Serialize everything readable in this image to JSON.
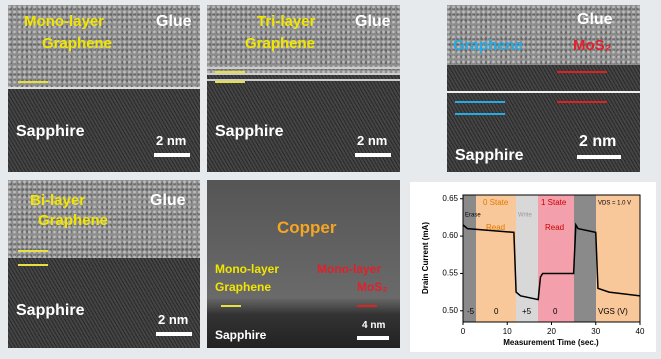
{
  "panels": [
    {
      "labels": [
        "Mono-layer",
        "Graphene",
        "Glue",
        "Sapphire",
        "2 nm"
      ]
    },
    {
      "labels": [
        "Tri-layer",
        "Graphene",
        "Glue",
        "Sapphire",
        "2 nm"
      ]
    },
    {
      "labels": [
        "Glue",
        "Graphene",
        "MoS₂",
        "Sapphire",
        "2 nm"
      ]
    },
    {
      "labels": [
        "Bi-layer",
        "Graphene",
        "Glue",
        "Sapphire",
        "2 nm"
      ]
    },
    {
      "labels": [
        "Copper",
        "Mono-layer",
        "Graphene",
        "Mono-layer",
        "MoS₂",
        "Sapphire",
        "4 nm"
      ]
    }
  ],
  "chart_data": {
    "type": "line",
    "x_label": "Measurement Time (sec.)",
    "y_label": "Drain Current (mA)",
    "annotations": [
      "Erase",
      "0 State",
      "Read",
      "Write",
      "1 State",
      "Read",
      "VDS = 1.0 V",
      "-5",
      "0",
      "+5",
      "0",
      "VGS (V)"
    ],
    "x": [
      0,
      1,
      11.5,
      12,
      13,
      17,
      17.5,
      18,
      25,
      25.5,
      26,
      30,
      30.5,
      33,
      40
    ],
    "series": [
      {
        "color": "#000000",
        "values": [
          0.615,
          0.61,
          0.605,
          0.525,
          0.52,
          0.515,
          0.545,
          0.55,
          0.55,
          0.615,
          0.61,
          0.605,
          0.53,
          0.525,
          0.52
        ]
      }
    ],
    "xlim": [
      0,
      40
    ],
    "xticks": [
      0,
      10,
      20,
      30,
      40
    ],
    "ylim": [
      0.485,
      0.655
    ],
    "yticks": [
      {
        "value": 0.5,
        "label": "0.50"
      },
      0.55,
      {
        "value": 0.6,
        "label": "0.60"
      },
      0.65
    ]
  }
}
